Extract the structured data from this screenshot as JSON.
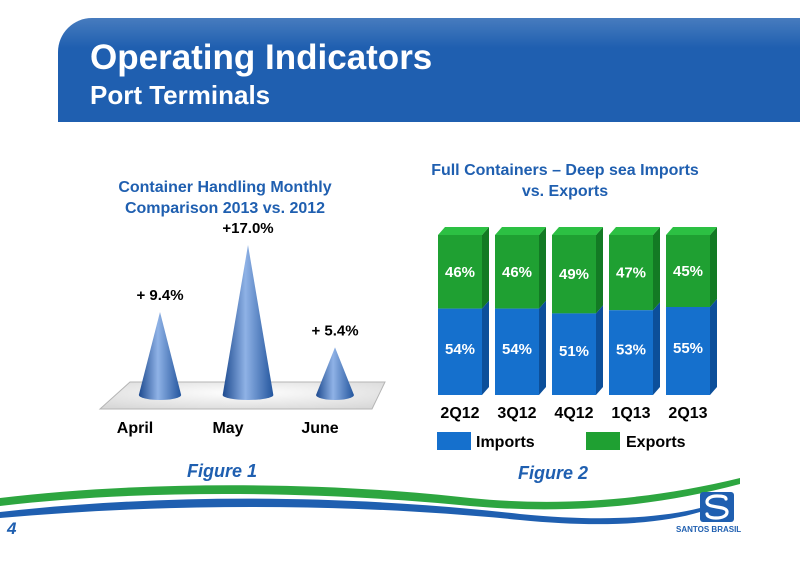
{
  "header": {
    "title": "Operating Indicators",
    "subtitle": "Port Terminals"
  },
  "page_number": "4",
  "logo": {
    "text": "SANTOS BRASIL"
  },
  "colors": {
    "brand_blue": "#1f5fb0",
    "imports_blue": "#1570cd",
    "exports_green": "#1fa032",
    "swoosh_green": "#2da640"
  },
  "figures": {
    "figure1": "Figure 1",
    "figure2": "Figure 2"
  },
  "chart_data": [
    {
      "type": "bar",
      "title": "Container Handling Monthly Comparison 2013 vs. 2012",
      "categories": [
        "April",
        "May",
        "June"
      ],
      "values": [
        9.4,
        17.0,
        5.4
      ],
      "labels": [
        "+ 9.4%",
        "+17.0%",
        "+ 5.4%"
      ],
      "unit": "%",
      "shape": "cone",
      "xlabel": "",
      "ylabel": ""
    },
    {
      "type": "bar",
      "stacked": true,
      "percent_stacked": true,
      "title": "Full Containers – Deep sea Imports vs. Exports",
      "categories": [
        "2Q12",
        "3Q12",
        "4Q12",
        "1Q13",
        "2Q13"
      ],
      "series": [
        {
          "name": "Imports",
          "values": [
            54,
            54,
            51,
            53,
            55
          ],
          "labels": [
            "54%",
            "54%",
            "51%",
            "53%",
            "55%"
          ]
        },
        {
          "name": "Exports",
          "values": [
            46,
            46,
            49,
            47,
            45
          ],
          "labels": [
            "46%",
            "46%",
            "49%",
            "47%",
            "45%"
          ]
        }
      ],
      "ylim": [
        0,
        100
      ],
      "legend": "bottom",
      "xlabel": "",
      "ylabel": ""
    }
  ]
}
